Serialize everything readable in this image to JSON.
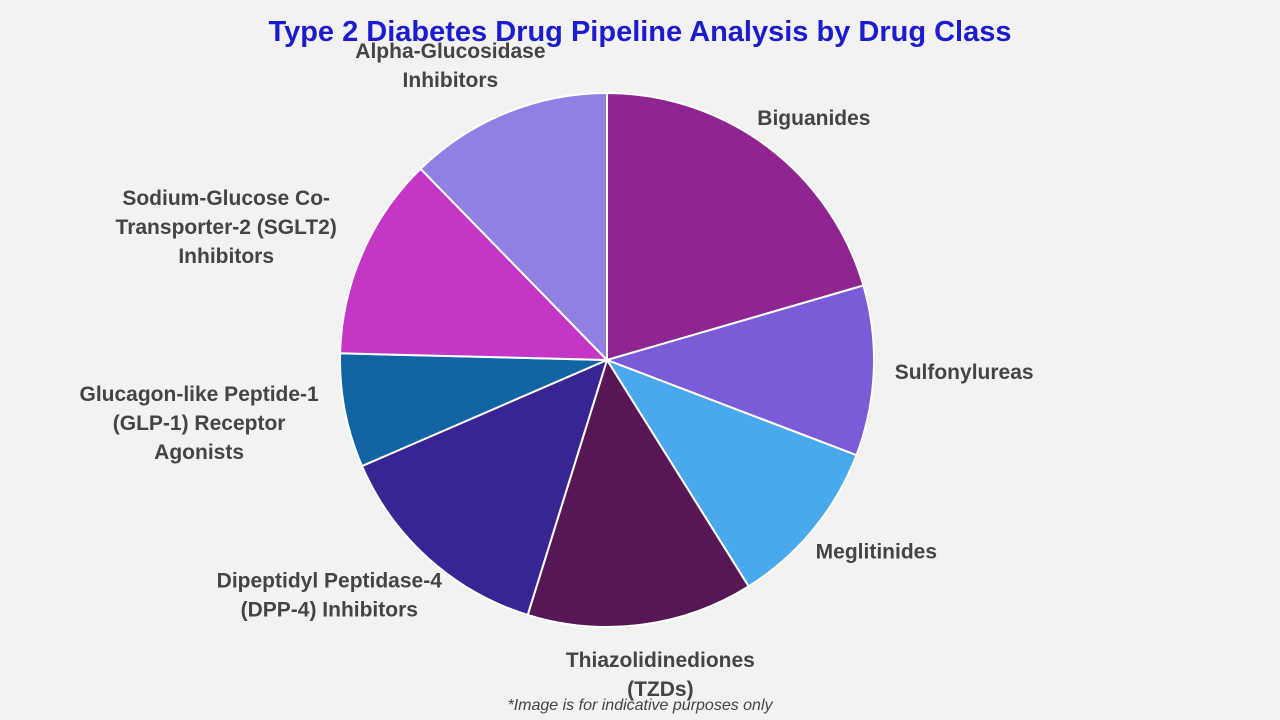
{
  "chart_data": {
    "type": "pie",
    "title": "Type 2 Diabetes Drug Pipeline Analysis by Drug Class",
    "categories": [
      "Biguanides",
      "Sulfonylureas",
      "Meglitinides",
      "Thiazolidinediones (TZDs)",
      "Dipeptidyl Peptidase-4 (DPP-4) Inhibitors",
      "Glucagon-like Peptide-1 (GLP-1) Receptor Agonists",
      "Sodium-Glucose Co-Transporter-2 (SGLT2) Inhibitors",
      "Alpha-Glucosidase Inhibitors"
    ],
    "values": [
      20.5,
      10.3,
      10.3,
      13.7,
      13.7,
      6.9,
      12.3,
      12.3
    ],
    "colors": [
      "#8e2590",
      "#7a5cd8",
      "#4aa8ec",
      "#571757",
      "#392494",
      "#1265a5",
      "#c437c6",
      "#917fe3"
    ],
    "footnote": "*Image is for indicative purposes only"
  }
}
